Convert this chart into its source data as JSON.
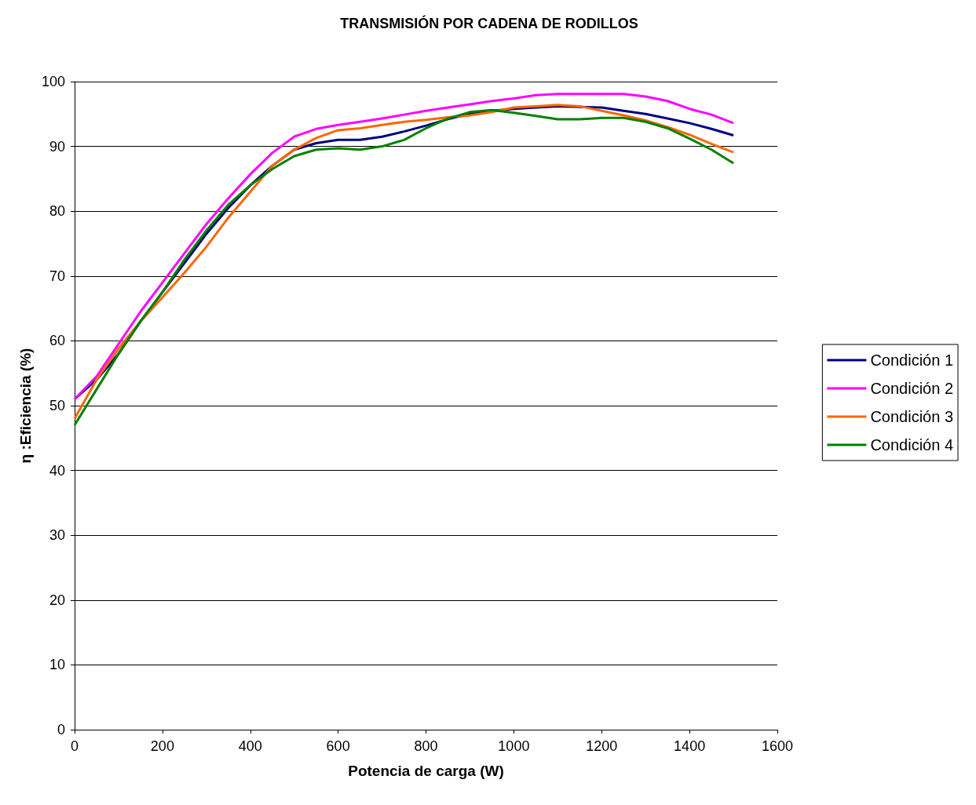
{
  "chart_data": {
    "type": "line",
    "title": "TRANSMISIÓN POR CADENA DE RODILLOS",
    "xlabel": "Potencia de carga (W)",
    "ylabel": "η :Eficiencia (%)",
    "x": [
      0,
      50,
      100,
      150,
      200,
      250,
      300,
      350,
      400,
      450,
      500,
      550,
      600,
      650,
      700,
      750,
      800,
      850,
      900,
      950,
      1000,
      1050,
      1100,
      1150,
      1200,
      1250,
      1300,
      1350,
      1400,
      1450,
      1500
    ],
    "series": [
      {
        "name": "Condición 1",
        "color": "#000080",
        "values": [
          51,
          54,
          58,
          63,
          67.5,
          72,
          76.5,
          80.5,
          84,
          87,
          89.5,
          90.5,
          91,
          91,
          91.5,
          92.3,
          93.2,
          94.2,
          95,
          95.5,
          95.8,
          96,
          96.2,
          96.1,
          96,
          95.5,
          95,
          94.3,
          93.6,
          92.7,
          91.7
        ]
      },
      {
        "name": "Condición 2",
        "color": "#ff00ff",
        "values": [
          51,
          54.5,
          59.5,
          64.5,
          69,
          73.5,
          78,
          82,
          85.7,
          89,
          91.5,
          92.7,
          93.3,
          93.8,
          94.3,
          94.9,
          95.5,
          96,
          96.5,
          97,
          97.4,
          97.9,
          98.1,
          98.1,
          98.1,
          98.1,
          97.7,
          97,
          95.8,
          94.9,
          93.6
        ]
      },
      {
        "name": "Condición 3",
        "color": "#ff6600",
        "values": [
          48,
          54,
          58.8,
          63,
          66.7,
          70.5,
          74.5,
          79,
          83,
          87,
          89.5,
          91.3,
          92.5,
          92.8,
          93.3,
          93.8,
          94.1,
          94.5,
          94.8,
          95.3,
          96,
          96.2,
          96.4,
          96.2,
          95.5,
          94.8,
          94,
          93,
          91.8,
          90.4,
          89.1
        ]
      },
      {
        "name": "Condición 4",
        "color": "#008000",
        "values": [
          47,
          52.5,
          58,
          63,
          67.5,
          72.5,
          77,
          81,
          84,
          86.5,
          88.5,
          89.5,
          89.7,
          89.5,
          90,
          91,
          92.8,
          94.3,
          95.3,
          95.6,
          95.2,
          94.7,
          94.2,
          94.2,
          94.4,
          94.4,
          93.8,
          92.8,
          91.2,
          89.5,
          87.4
        ]
      }
    ],
    "xlim": [
      0,
      1600
    ],
    "xticks": [
      0,
      200,
      400,
      600,
      800,
      1000,
      1200,
      1400,
      1600
    ],
    "ylim": [
      0,
      100
    ],
    "yticks": [
      0,
      10,
      20,
      30,
      40,
      50,
      60,
      70,
      80,
      90,
      100
    ],
    "grid": "y",
    "legend": "right",
    "marker": "none",
    "line_style": "solid"
  }
}
